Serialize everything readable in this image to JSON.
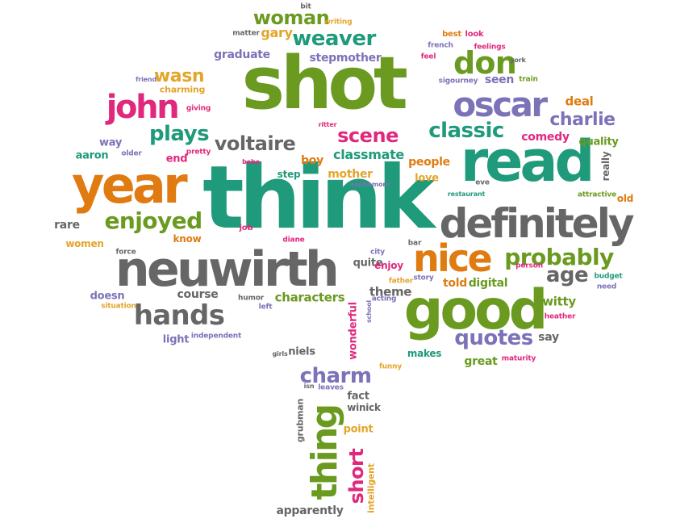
{
  "palette": {
    "green": "#6a9a1f",
    "teal": "#1f9a7a",
    "orange": "#e07b12",
    "purple": "#7b72b8",
    "gray": "#666666",
    "pink": "#e0287d",
    "gold": "#e3a52a"
  },
  "words": [
    {
      "text": "shot",
      "color": "green"
    },
    {
      "text": "think",
      "color": "teal"
    },
    {
      "text": "read",
      "color": "teal"
    },
    {
      "text": "definitely",
      "color": "gray"
    },
    {
      "text": "year",
      "color": "orange"
    },
    {
      "text": "neuwirth",
      "color": "gray"
    },
    {
      "text": "good",
      "color": "green"
    },
    {
      "text": "oscar",
      "color": "purple"
    },
    {
      "text": "nice",
      "color": "orange"
    },
    {
      "text": "john",
      "color": "pink"
    },
    {
      "text": "thing",
      "color": "green"
    },
    {
      "text": "don",
      "color": "green"
    },
    {
      "text": "weaver",
      "color": "teal"
    },
    {
      "text": "woman",
      "color": "green"
    },
    {
      "text": "probably",
      "color": "green"
    },
    {
      "text": "hands",
      "color": "gray"
    },
    {
      "text": "enjoyed",
      "color": "green"
    },
    {
      "text": "charm",
      "color": "purple"
    },
    {
      "text": "quotes",
      "color": "purple"
    },
    {
      "text": "classic",
      "color": "teal"
    },
    {
      "text": "age",
      "color": "gray"
    },
    {
      "text": "plays",
      "color": "teal"
    },
    {
      "text": "voltaire",
      "color": "gray"
    },
    {
      "text": "scene",
      "color": "pink"
    },
    {
      "text": "charlie",
      "color": "purple"
    },
    {
      "text": "wasn",
      "color": "gold"
    },
    {
      "text": "short",
      "color": "pink"
    },
    {
      "text": "classmate",
      "color": "teal"
    },
    {
      "text": "characters",
      "color": "green"
    },
    {
      "text": "course",
      "color": "gray"
    },
    {
      "text": "theme",
      "color": "gray"
    },
    {
      "text": "told",
      "color": "orange"
    },
    {
      "text": "digital",
      "color": "green"
    },
    {
      "text": "witty",
      "color": "green"
    },
    {
      "text": "graduate",
      "color": "purple"
    },
    {
      "text": "stepmother",
      "color": "purple"
    },
    {
      "text": "gary",
      "color": "gold"
    },
    {
      "text": "deal",
      "color": "orange"
    },
    {
      "text": "comedy",
      "color": "pink"
    },
    {
      "text": "quality",
      "color": "green"
    },
    {
      "text": "seen",
      "color": "purple"
    },
    {
      "text": "people",
      "color": "orange"
    },
    {
      "text": "love",
      "color": "gold"
    },
    {
      "text": "mother",
      "color": "gold"
    },
    {
      "text": "boy",
      "color": "orange"
    },
    {
      "text": "quite",
      "color": "gray"
    },
    {
      "text": "enjoy",
      "color": "pink"
    },
    {
      "text": "apparently",
      "color": "gray"
    },
    {
      "text": "fact",
      "color": "gray"
    },
    {
      "text": "point",
      "color": "gold"
    },
    {
      "text": "great",
      "color": "green"
    },
    {
      "text": "makes",
      "color": "teal"
    },
    {
      "text": "say",
      "color": "gray"
    },
    {
      "text": "light",
      "color": "purple"
    },
    {
      "text": "niels",
      "color": "gray"
    },
    {
      "text": "rare",
      "color": "gray"
    },
    {
      "text": "aaron",
      "color": "teal"
    },
    {
      "text": "way",
      "color": "purple"
    },
    {
      "text": "end",
      "color": "pink"
    },
    {
      "text": "step",
      "color": "teal"
    },
    {
      "text": "old",
      "color": "orange"
    },
    {
      "text": "wonderful",
      "color": "pink"
    },
    {
      "text": "really",
      "color": "gray"
    },
    {
      "text": "doesn",
      "color": "purple"
    },
    {
      "text": "women",
      "color": "gold"
    },
    {
      "text": "know",
      "color": "orange"
    },
    {
      "text": "job",
      "color": "pink"
    },
    {
      "text": "winick",
      "color": "gray"
    },
    {
      "text": "intelligent",
      "color": "gold"
    },
    {
      "text": "grubman",
      "color": "gray"
    },
    {
      "text": "school",
      "color": "purple"
    },
    {
      "text": "charming",
      "color": "gold"
    },
    {
      "text": "pretty",
      "color": "pink"
    },
    {
      "text": "older",
      "color": "purple"
    },
    {
      "text": "matter",
      "color": "gray"
    },
    {
      "text": "writing",
      "color": "gold"
    },
    {
      "text": "bit",
      "color": "gray"
    },
    {
      "text": "best",
      "color": "orange"
    },
    {
      "text": "look",
      "color": "pink"
    },
    {
      "text": "french",
      "color": "purple"
    },
    {
      "text": "feel",
      "color": "pink"
    },
    {
      "text": "feelings",
      "color": "pink"
    },
    {
      "text": "eve",
      "color": "gray"
    },
    {
      "text": "york",
      "color": "gray"
    },
    {
      "text": "train",
      "color": "green"
    },
    {
      "text": "sigourney",
      "color": "purple"
    },
    {
      "text": "friend",
      "color": "purple"
    },
    {
      "text": "giving",
      "color": "pink"
    },
    {
      "text": "ritter",
      "color": "pink"
    },
    {
      "text": "bebe",
      "color": "pink"
    },
    {
      "text": "sophomore",
      "color": "purple"
    },
    {
      "text": "restaurant",
      "color": "teal"
    },
    {
      "text": "attractive",
      "color": "green"
    },
    {
      "text": "force",
      "color": "gray"
    },
    {
      "text": "diane",
      "color": "pink"
    },
    {
      "text": "city",
      "color": "purple"
    },
    {
      "text": "bar",
      "color": "gray"
    },
    {
      "text": "father",
      "color": "gold"
    },
    {
      "text": "story",
      "color": "purple"
    },
    {
      "text": "person",
      "color": "pink"
    },
    {
      "text": "budget",
      "color": "teal"
    },
    {
      "text": "need",
      "color": "purple"
    },
    {
      "text": "humor",
      "color": "gray"
    },
    {
      "text": "left",
      "color": "purple"
    },
    {
      "text": "acting",
      "color": "purple"
    },
    {
      "text": "situation",
      "color": "gold"
    },
    {
      "text": "independent",
      "color": "purple"
    },
    {
      "text": "heather",
      "color": "pink"
    },
    {
      "text": "maturity",
      "color": "pink"
    },
    {
      "text": "girls",
      "color": "gray"
    },
    {
      "text": "funny",
      "color": "gold"
    },
    {
      "text": "isn",
      "color": "gray"
    },
    {
      "text": "leaves",
      "color": "purple"
    }
  ]
}
